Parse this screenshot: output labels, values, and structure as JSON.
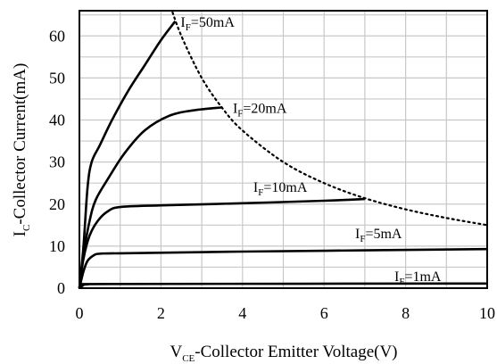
{
  "chart_data": {
    "type": "line",
    "x_axis": {
      "label_main": "V",
      "label_sub": "CE",
      "label_rest": "-Collector Emitter Voltage(V)",
      "range": [
        0,
        10
      ],
      "ticks": [
        0,
        2,
        4,
        6,
        8,
        10
      ],
      "tick_labels": [
        "0",
        "2",
        "4",
        "6",
        "8",
        "10"
      ]
    },
    "y_axis": {
      "label_main": "I",
      "label_sub": "C",
      "label_rest": "-Collector Current(mA)",
      "range": [
        0,
        66
      ],
      "ticks": [
        0,
        10,
        20,
        30,
        40,
        50,
        60
      ],
      "tick_labels": [
        "0",
        "10",
        "20",
        "30",
        "40",
        "50",
        "60"
      ]
    },
    "grid": true,
    "grid_x_step": 1,
    "grid_y_step": 5,
    "series": [
      {
        "name_main": "I",
        "name_sub": "F",
        "name_rest": "=50mA",
        "points": [
          [
            0,
            0
          ],
          [
            0.1,
            10
          ],
          [
            0.2,
            24
          ],
          [
            0.3,
            30
          ],
          [
            0.5,
            34
          ],
          [
            0.8,
            40
          ],
          [
            1.2,
            47
          ],
          [
            1.6,
            53
          ],
          [
            2.0,
            59
          ],
          [
            2.35,
            63.5
          ]
        ]
      },
      {
        "name_main": "I",
        "name_sub": "F",
        "name_rest": "=20mA",
        "points": [
          [
            0,
            0
          ],
          [
            0.1,
            8
          ],
          [
            0.25,
            16
          ],
          [
            0.4,
            21
          ],
          [
            0.7,
            26
          ],
          [
            1.1,
            32
          ],
          [
            1.6,
            37.5
          ],
          [
            2.2,
            41
          ],
          [
            2.8,
            42.3
          ],
          [
            3.5,
            43
          ]
        ]
      },
      {
        "name_main": "I",
        "name_sub": "F",
        "name_rest": "=10mA",
        "points": [
          [
            0,
            0
          ],
          [
            0.1,
            7
          ],
          [
            0.25,
            12.5
          ],
          [
            0.45,
            16
          ],
          [
            0.7,
            18.3
          ],
          [
            1.0,
            19.3
          ],
          [
            2,
            19.7
          ],
          [
            4,
            20.2
          ],
          [
            6,
            20.8
          ],
          [
            7.0,
            21.2
          ]
        ]
      },
      {
        "name_main": "I",
        "name_sub": "F",
        "name_rest": "=5mA",
        "points": [
          [
            0,
            0
          ],
          [
            0.1,
            4
          ],
          [
            0.2,
            6.5
          ],
          [
            0.35,
            7.8
          ],
          [
            0.5,
            8.2
          ],
          [
            1,
            8.3
          ],
          [
            4,
            8.7
          ],
          [
            7,
            9.0
          ],
          [
            10,
            9.3
          ]
        ]
      },
      {
        "name_main": "I",
        "name_sub": "F",
        "name_rest": "=1mA",
        "points": [
          [
            0,
            0
          ],
          [
            0.08,
            0.6
          ],
          [
            0.2,
            0.9
          ],
          [
            1,
            1.0
          ],
          [
            10,
            1.1
          ]
        ]
      }
    ],
    "power_limit_curve": {
      "style": "dotted",
      "points": [
        [
          2.2,
          68
        ],
        [
          2.5,
          60
        ],
        [
          3,
          50
        ],
        [
          3.5,
          42.9
        ],
        [
          4,
          37.5
        ],
        [
          5,
          30
        ],
        [
          6,
          25
        ],
        [
          7,
          21.4
        ],
        [
          8,
          18.75
        ],
        [
          9,
          16.7
        ],
        [
          10,
          15
        ]
      ]
    }
  }
}
